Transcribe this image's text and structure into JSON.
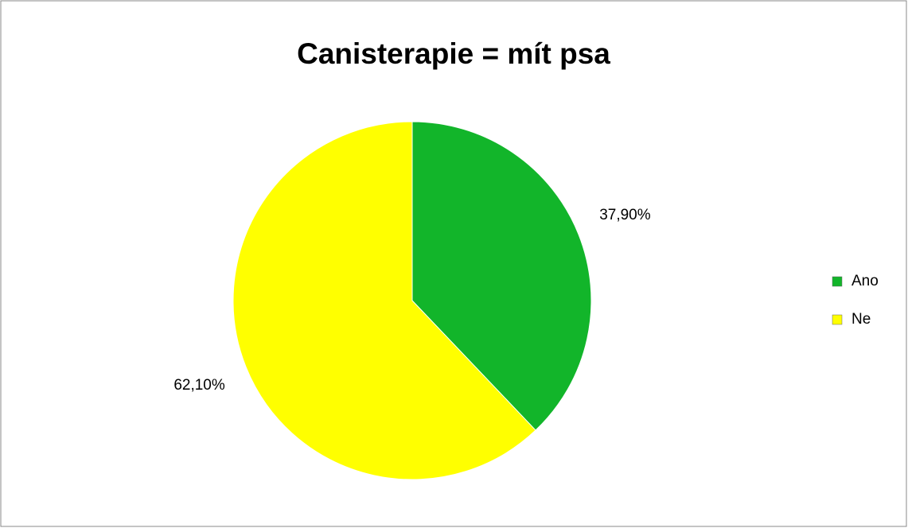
{
  "chart_data": {
    "type": "pie",
    "title": "Canisterapie = mít psa",
    "categories": [
      "Ano",
      "Ne"
    ],
    "values": [
      37.9,
      62.1
    ],
    "value_labels": [
      "37,90%",
      "62,10%"
    ],
    "colors": [
      "#12b52a",
      "#ffff00"
    ],
    "legend": "right"
  }
}
